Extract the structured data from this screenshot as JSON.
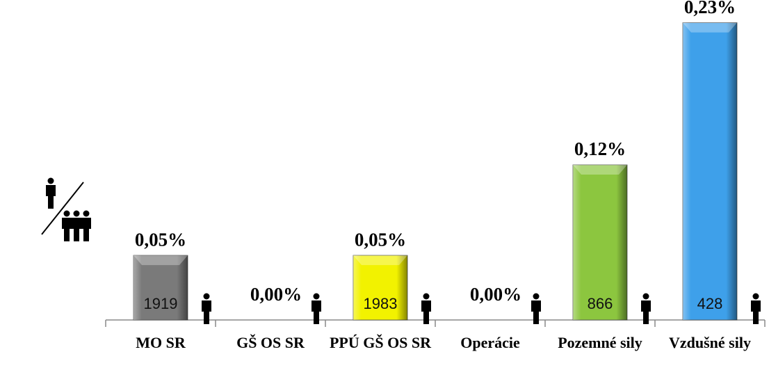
{
  "chart_data": {
    "type": "bar",
    "categories": [
      "MO SR",
      "GŠ OS SR",
      "PPÚ GŠ OS SR",
      "Operácie",
      "Pozemné sily",
      "Vzdušné sily"
    ],
    "values": [
      0.05,
      0,
      0.05,
      0,
      0.12,
      0.23
    ],
    "value_labels": [
      "0,05%",
      "0,00%",
      "0,05%",
      "0,00%",
      "0,12%",
      "0,23%"
    ],
    "counts": [
      1919,
      null,
      1983,
      null,
      866,
      428
    ],
    "colors": [
      "#7a7a7a",
      "#7a7a7a",
      "#f2f200",
      "#7a7a7a",
      "#8cc63f",
      "#3ea0ea"
    ],
    "ylim": [
      0,
      0.24
    ]
  }
}
